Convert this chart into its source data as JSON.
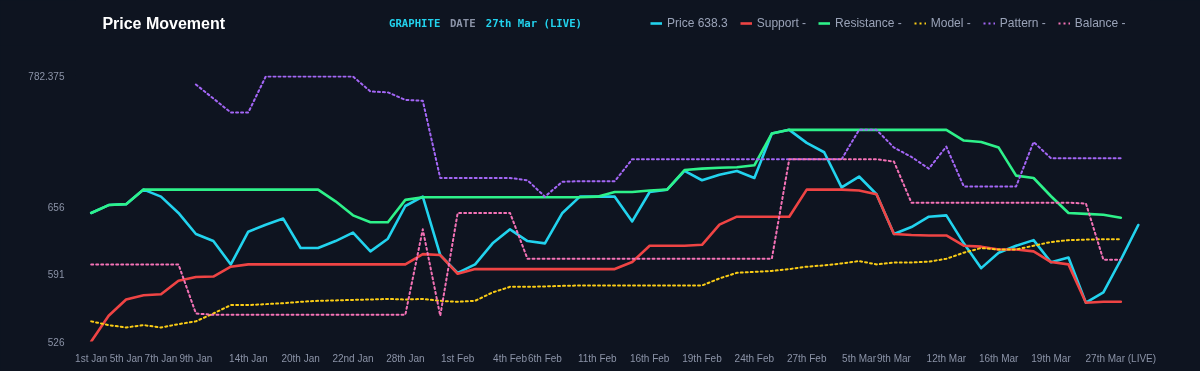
{
  "chart_data": {
    "type": "line",
    "title": "Price Movement",
    "annotations": [
      "GRAPHITE",
      "DATE",
      "27th Mar (LIVE)"
    ],
    "categories": [
      "1st Jan",
      null,
      "5th Jan",
      null,
      "7th Jan",
      null,
      "9th Jan",
      null,
      null,
      "14th Jan",
      null,
      null,
      "20th Jan",
      null,
      null,
      "22nd Jan",
      null,
      null,
      "28th Jan",
      null,
      null,
      "1st Feb",
      null,
      null,
      "4th Feb",
      null,
      "6th Feb",
      null,
      null,
      "11th Feb",
      null,
      null,
      "16th Feb",
      null,
      null,
      "19th Feb",
      null,
      null,
      "24th Feb",
      null,
      null,
      "27th Feb",
      null,
      null,
      "5th Mar",
      null,
      "9th Mar",
      null,
      null,
      "12th Mar",
      null,
      null,
      "16th Mar",
      null,
      null,
      "19th Mar",
      null,
      null,
      null,
      "27th Mar (LIVE)",
      null
    ],
    "ylim": [
      526,
      782.375
    ],
    "yticks": [
      526,
      591,
      656,
      782.375
    ],
    "grid": false,
    "legend": "top right",
    "marker": "none",
    "series": [
      {
        "name": "Price 638.3",
        "color": "#22d3ee",
        "line_style": "solid",
        "values": [
          649.9,
          657.5,
          658.4,
          672.4,
          665.6,
          649.9,
          629.6,
          622.8,
          600.3,
          631.8,
          638.6,
          644.5,
          616.1,
          616.1,
          622.8,
          631.0,
          612.9,
          625.1,
          656.6,
          665.6,
          609.3,
          592.2,
          600.3,
          620.6,
          634.1,
          622.8,
          620.6,
          649.9,
          665.6,
          665.6,
          665.6,
          641.7,
          670.1,
          672.4,
          690.4,
          681.4,
          686.8,
          690.4,
          683.6,
          726.4,
          730.0,
          717.4,
          708.4,
          674.6,
          685.0,
          667.9,
          629.6,
          636.3,
          646.3,
          647.6,
          620.6,
          596.7,
          611.6,
          618.3,
          623.7,
          602.4,
          607.0,
          563.4,
          573.3,
          604.8,
          638.3
        ]
      },
      {
        "name": "Support -",
        "color": "#ef4444",
        "line_style": "solid",
        "values": [
          526.0,
          550.8,
          566.5,
          570.6,
          571.5,
          584.6,
          588.2,
          588.6,
          598.1,
          600.3,
          600.3,
          600.3,
          600.3,
          600.3,
          600.3,
          600.3,
          600.3,
          600.3,
          600.3,
          610.2,
          609.3,
          591.3,
          595.8,
          595.8,
          595.8,
          595.8,
          595.8,
          595.8,
          595.8,
          595.8,
          595.8,
          602.6,
          618.3,
          618.3,
          618.3,
          619.2,
          638.6,
          646.3,
          646.3,
          646.3,
          646.3,
          672.4,
          672.4,
          672.4,
          671.5,
          667.9,
          629.6,
          628.7,
          628.2,
          628.2,
          618.3,
          617.4,
          614.7,
          614.7,
          612.9,
          602.6,
          600.3,
          563.4,
          564.3,
          564.3,
          null
        ]
      },
      {
        "name": "Resistance -",
        "color": "#2ef28a",
        "line_style": "solid",
        "values": [
          649.9,
          657.5,
          658.4,
          672.4,
          672.4,
          672.4,
          672.4,
          672.4,
          672.4,
          672.4,
          672.4,
          672.4,
          672.4,
          672.4,
          661.1,
          647.6,
          640.9,
          640.9,
          662.5,
          665.1,
          665.1,
          665.1,
          665.1,
          665.1,
          665.1,
          665.1,
          665.1,
          665.1,
          665.1,
          665.6,
          670.1,
          670.1,
          671.5,
          672.4,
          691.3,
          692.6,
          693.5,
          694.0,
          695.8,
          726.4,
          730.0,
          730.0,
          730.0,
          730.0,
          730.0,
          730.0,
          730.0,
          730.0,
          730.0,
          730.0,
          719.7,
          718.3,
          712.9,
          685.9,
          683.6,
          666.0,
          649.8,
          649.0,
          648.1,
          645.3,
          null
        ]
      },
      {
        "name": "Model -",
        "color": "#facc15",
        "line_style": "dotted",
        "values": [
          545.4,
          541.8,
          539.5,
          541.8,
          539.5,
          542.7,
          545.4,
          553.0,
          561.1,
          561.1,
          562.0,
          562.9,
          564.3,
          565.2,
          565.6,
          566.1,
          566.5,
          567.0,
          566.5,
          567.0,
          565.2,
          564.3,
          565.2,
          573.3,
          578.7,
          578.7,
          579.1,
          579.6,
          580.0,
          580.0,
          580.0,
          580.0,
          580.0,
          580.0,
          580.0,
          580.0,
          586.8,
          592.2,
          593.1,
          594.0,
          595.8,
          598.1,
          599.4,
          601.2,
          603.5,
          600.3,
          602.1,
          602.1,
          603.0,
          605.7,
          611.6,
          616.1,
          614.7,
          614.7,
          618.3,
          621.9,
          623.7,
          624.2,
          624.6,
          624.6,
          null
        ]
      },
      {
        "name": "Pattern -",
        "color": "#a366f5",
        "line_style": "dotted",
        "values": [
          null,
          null,
          null,
          null,
          null,
          null,
          773.7,
          760.2,
          746.7,
          746.7,
          781.4,
          781.4,
          781.4,
          781.4,
          781.4,
          781.4,
          767.0,
          766.1,
          758.9,
          758.0,
          683.6,
          683.6,
          683.6,
          683.6,
          683.6,
          681.4,
          665.6,
          680.0,
          680.5,
          680.5,
          680.5,
          701.7,
          701.7,
          701.7,
          701.7,
          701.7,
          701.7,
          701.7,
          701.7,
          701.7,
          701.7,
          701.7,
          701.7,
          701.7,
          730.0,
          730.0,
          712.9,
          703.9,
          692.6,
          713.8,
          675.5,
          675.5,
          675.5,
          675.5,
          718.3,
          702.6,
          702.6,
          702.6,
          702.6,
          702.6,
          null
        ]
      },
      {
        "name": "Balance -",
        "color": "#f472b6",
        "line_style": "dotted",
        "values": [
          600.3,
          600.3,
          600.3,
          600.3,
          600.3,
          600.3,
          553.0,
          551.7,
          551.7,
          551.7,
          551.7,
          551.7,
          551.7,
          551.7,
          551.7,
          551.7,
          551.7,
          551.7,
          551.7,
          634.1,
          550.8,
          649.9,
          649.9,
          649.9,
          649.9,
          605.7,
          605.7,
          605.7,
          605.7,
          605.7,
          605.7,
          605.7,
          605.7,
          605.7,
          605.7,
          605.7,
          605.7,
          605.7,
          605.7,
          605.7,
          701.7,
          701.7,
          701.7,
          701.7,
          701.7,
          701.7,
          699.4,
          659.8,
          659.8,
          659.8,
          659.8,
          659.8,
          659.8,
          659.8,
          659.8,
          659.8,
          659.8,
          659.0,
          604.8,
          604.8,
          null
        ]
      }
    ]
  }
}
